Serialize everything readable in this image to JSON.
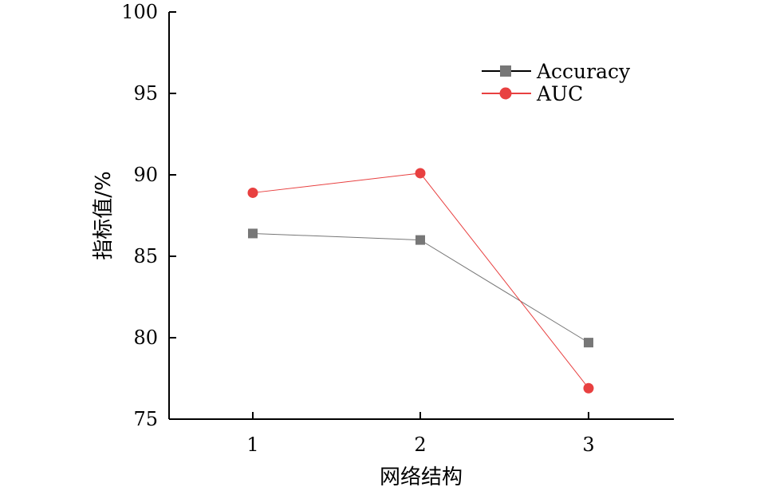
{
  "chart_data": {
    "type": "line",
    "title": "",
    "xlabel": "网络结构",
    "ylabel": "指标值/%",
    "categories": [
      "1",
      "2",
      "3"
    ],
    "ylim": [
      75,
      100
    ],
    "yticks": [
      "75",
      "80",
      "85",
      "90",
      "95",
      "100"
    ],
    "grid": false,
    "legend_position": "top-right",
    "series": [
      {
        "name": "Accuracy",
        "values": [
          86.4,
          86.0,
          79.7
        ],
        "color": "#777777",
        "marker": "square"
      },
      {
        "name": "AUC",
        "values": [
          88.9,
          90.1,
          76.9
        ],
        "color": "#e84040",
        "marker": "circle"
      }
    ]
  }
}
